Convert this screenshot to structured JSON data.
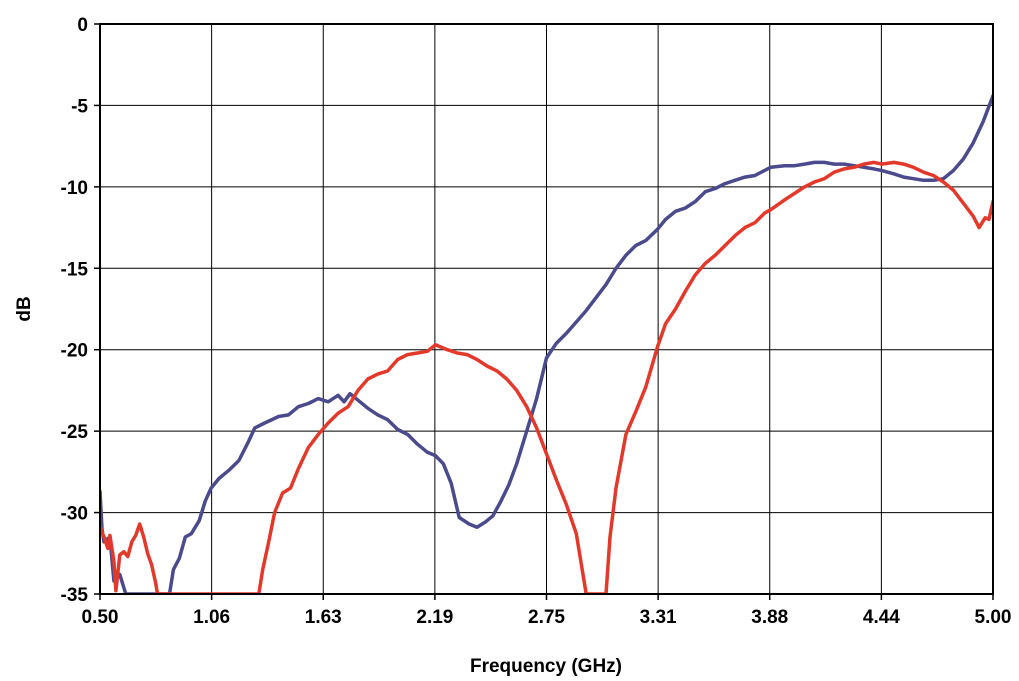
{
  "chart_data": {
    "type": "line",
    "title": "",
    "xlabel": "Frequency (GHz)",
    "ylabel": "dB",
    "xlim": [
      0.5,
      5.0
    ],
    "ylim": [
      -35,
      0
    ],
    "x_ticks": [
      "0.50",
      "1.06",
      "1.63",
      "2.19",
      "2.75",
      "3.31",
      "3.88",
      "4.44",
      "5.00"
    ],
    "y_ticks": [
      "0",
      "-5",
      "-10",
      "-15",
      "-20",
      "-25",
      "-30",
      "-35"
    ],
    "grid": true,
    "legend": "none",
    "colors": {
      "blue": "#4a4a8c",
      "red": "#e2392b"
    },
    "series": [
      {
        "color": "#4a4a8c",
        "points": [
          [
            0.5,
            -28.7
          ],
          [
            0.51,
            -31.0
          ],
          [
            0.52,
            -31.8
          ],
          [
            0.55,
            -31.5
          ],
          [
            0.57,
            -34.2
          ],
          [
            0.6,
            -33.8
          ],
          [
            0.63,
            -35.0
          ],
          [
            0.85,
            -35.0
          ],
          [
            0.87,
            -33.5
          ],
          [
            0.9,
            -32.8
          ],
          [
            0.93,
            -31.5
          ],
          [
            0.96,
            -31.3
          ],
          [
            1.0,
            -30.5
          ],
          [
            1.03,
            -29.3
          ],
          [
            1.06,
            -28.5
          ],
          [
            1.1,
            -27.9
          ],
          [
            1.15,
            -27.4
          ],
          [
            1.2,
            -26.8
          ],
          [
            1.25,
            -25.6
          ],
          [
            1.28,
            -24.8
          ],
          [
            1.33,
            -24.5
          ],
          [
            1.4,
            -24.1
          ],
          [
            1.45,
            -24.0
          ],
          [
            1.5,
            -23.5
          ],
          [
            1.55,
            -23.3
          ],
          [
            1.6,
            -23.0
          ],
          [
            1.65,
            -23.2
          ],
          [
            1.7,
            -22.8
          ],
          [
            1.73,
            -23.2
          ],
          [
            1.76,
            -22.7
          ],
          [
            1.8,
            -23.1
          ],
          [
            1.85,
            -23.6
          ],
          [
            1.9,
            -24.0
          ],
          [
            1.95,
            -24.3
          ],
          [
            2.0,
            -24.9
          ],
          [
            2.05,
            -25.2
          ],
          [
            2.1,
            -25.8
          ],
          [
            2.15,
            -26.3
          ],
          [
            2.19,
            -26.5
          ],
          [
            2.23,
            -27.0
          ],
          [
            2.27,
            -28.2
          ],
          [
            2.31,
            -30.3
          ],
          [
            2.36,
            -30.7
          ],
          [
            2.4,
            -30.9
          ],
          [
            2.44,
            -30.6
          ],
          [
            2.48,
            -30.2
          ],
          [
            2.52,
            -29.3
          ],
          [
            2.56,
            -28.3
          ],
          [
            2.6,
            -27.0
          ],
          [
            2.65,
            -25.0
          ],
          [
            2.7,
            -23.0
          ],
          [
            2.75,
            -20.5
          ],
          [
            2.8,
            -19.6
          ],
          [
            2.85,
            -19.0
          ],
          [
            2.9,
            -18.3
          ],
          [
            2.95,
            -17.6
          ],
          [
            3.0,
            -16.8
          ],
          [
            3.05,
            -16.0
          ],
          [
            3.1,
            -15.0
          ],
          [
            3.15,
            -14.2
          ],
          [
            3.2,
            -13.6
          ],
          [
            3.25,
            -13.3
          ],
          [
            3.31,
            -12.6
          ],
          [
            3.35,
            -12.0
          ],
          [
            3.4,
            -11.5
          ],
          [
            3.45,
            -11.3
          ],
          [
            3.5,
            -10.9
          ],
          [
            3.55,
            -10.3
          ],
          [
            3.6,
            -10.1
          ],
          [
            3.65,
            -9.8
          ],
          [
            3.7,
            -9.6
          ],
          [
            3.75,
            -9.4
          ],
          [
            3.8,
            -9.3
          ],
          [
            3.88,
            -8.8
          ],
          [
            3.95,
            -8.7
          ],
          [
            4.0,
            -8.7
          ],
          [
            4.05,
            -8.6
          ],
          [
            4.1,
            -8.5
          ],
          [
            4.15,
            -8.5
          ],
          [
            4.2,
            -8.6
          ],
          [
            4.25,
            -8.6
          ],
          [
            4.3,
            -8.7
          ],
          [
            4.35,
            -8.8
          ],
          [
            4.4,
            -8.9
          ],
          [
            4.44,
            -9.0
          ],
          [
            4.5,
            -9.2
          ],
          [
            4.55,
            -9.4
          ],
          [
            4.6,
            -9.5
          ],
          [
            4.65,
            -9.6
          ],
          [
            4.7,
            -9.6
          ],
          [
            4.75,
            -9.5
          ],
          [
            4.8,
            -9.0
          ],
          [
            4.85,
            -8.3
          ],
          [
            4.9,
            -7.3
          ],
          [
            4.95,
            -6.0
          ],
          [
            5.0,
            -4.4
          ]
        ]
      },
      {
        "color": "#e2392b",
        "points": [
          [
            0.5,
            -30.8
          ],
          [
            0.51,
            -31.2
          ],
          [
            0.52,
            -31.5
          ],
          [
            0.54,
            -32.2
          ],
          [
            0.55,
            -31.4
          ],
          [
            0.57,
            -33.0
          ],
          [
            0.58,
            -34.8
          ],
          [
            0.6,
            -32.6
          ],
          [
            0.62,
            -32.4
          ],
          [
            0.64,
            -32.7
          ],
          [
            0.66,
            -31.8
          ],
          [
            0.68,
            -31.4
          ],
          [
            0.7,
            -30.7
          ],
          [
            0.72,
            -31.5
          ],
          [
            0.74,
            -32.5
          ],
          [
            0.76,
            -33.2
          ],
          [
            0.78,
            -34.3
          ],
          [
            0.79,
            -35.0
          ],
          [
            1.3,
            -35.0
          ],
          [
            1.32,
            -33.5
          ],
          [
            1.35,
            -31.8
          ],
          [
            1.38,
            -30.0
          ],
          [
            1.42,
            -28.8
          ],
          [
            1.46,
            -28.5
          ],
          [
            1.5,
            -27.3
          ],
          [
            1.55,
            -26.0
          ],
          [
            1.6,
            -25.2
          ],
          [
            1.65,
            -24.5
          ],
          [
            1.7,
            -23.9
          ],
          [
            1.75,
            -23.5
          ],
          [
            1.8,
            -22.5
          ],
          [
            1.85,
            -21.8
          ],
          [
            1.9,
            -21.5
          ],
          [
            1.95,
            -21.3
          ],
          [
            2.0,
            -20.6
          ],
          [
            2.05,
            -20.3
          ],
          [
            2.1,
            -20.2
          ],
          [
            2.15,
            -20.1
          ],
          [
            2.19,
            -19.7
          ],
          [
            2.25,
            -20.0
          ],
          [
            2.3,
            -20.2
          ],
          [
            2.35,
            -20.3
          ],
          [
            2.4,
            -20.6
          ],
          [
            2.45,
            -21.0
          ],
          [
            2.5,
            -21.3
          ],
          [
            2.55,
            -21.8
          ],
          [
            2.6,
            -22.5
          ],
          [
            2.65,
            -23.5
          ],
          [
            2.7,
            -24.8
          ],
          [
            2.75,
            -26.4
          ],
          [
            2.8,
            -28.0
          ],
          [
            2.85,
            -29.5
          ],
          [
            2.9,
            -31.3
          ],
          [
            2.93,
            -33.5
          ],
          [
            2.95,
            -35.0
          ],
          [
            3.05,
            -35.0
          ],
          [
            3.07,
            -31.5
          ],
          [
            3.1,
            -28.5
          ],
          [
            3.15,
            -25.2
          ],
          [
            3.2,
            -23.8
          ],
          [
            3.25,
            -22.3
          ],
          [
            3.31,
            -19.8
          ],
          [
            3.35,
            -18.4
          ],
          [
            3.4,
            -17.5
          ],
          [
            3.45,
            -16.4
          ],
          [
            3.5,
            -15.4
          ],
          [
            3.55,
            -14.7
          ],
          [
            3.6,
            -14.2
          ],
          [
            3.65,
            -13.6
          ],
          [
            3.7,
            -13.0
          ],
          [
            3.75,
            -12.5
          ],
          [
            3.8,
            -12.2
          ],
          [
            3.85,
            -11.6
          ],
          [
            3.88,
            -11.4
          ],
          [
            3.95,
            -10.8
          ],
          [
            4.0,
            -10.4
          ],
          [
            4.05,
            -10.0
          ],
          [
            4.1,
            -9.7
          ],
          [
            4.15,
            -9.5
          ],
          [
            4.2,
            -9.1
          ],
          [
            4.25,
            -8.9
          ],
          [
            4.3,
            -8.8
          ],
          [
            4.35,
            -8.6
          ],
          [
            4.4,
            -8.5
          ],
          [
            4.44,
            -8.6
          ],
          [
            4.5,
            -8.5
          ],
          [
            4.55,
            -8.6
          ],
          [
            4.6,
            -8.8
          ],
          [
            4.65,
            -9.1
          ],
          [
            4.7,
            -9.3
          ],
          [
            4.75,
            -9.7
          ],
          [
            4.8,
            -10.2
          ],
          [
            4.85,
            -11.0
          ],
          [
            4.9,
            -11.8
          ],
          [
            4.93,
            -12.5
          ],
          [
            4.96,
            -11.9
          ],
          [
            4.98,
            -12.0
          ],
          [
            5.0,
            -10.9
          ]
        ]
      }
    ]
  }
}
